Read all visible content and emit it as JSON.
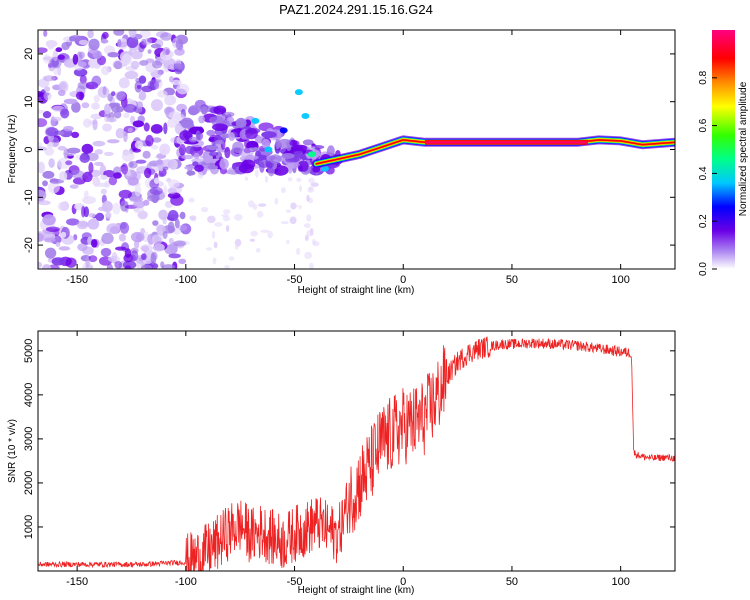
{
  "figure_title": "PAZ1.2024.291.15.16.G24",
  "chart_data": [
    {
      "type": "heatmap",
      "xlabel": "Height of straight line (km)",
      "ylabel": "Frequency (Hz)",
      "xlim": [
        -168,
        125
      ],
      "ylim": [
        -25,
        25
      ],
      "xticks": [
        -150,
        -100,
        -50,
        0,
        50,
        100
      ],
      "yticks": [
        -20,
        -10,
        0,
        10,
        20
      ],
      "colorbar": {
        "label": "Normalized spectral amplitude",
        "range": [
          0.0,
          1.0
        ],
        "ticks": [
          0.0,
          0.2,
          0.4,
          0.6,
          0.8
        ]
      },
      "signal_trace": {
        "x": [
          -40,
          -30,
          -20,
          -10,
          0,
          10,
          20,
          40,
          60,
          80,
          90,
          100,
          110,
          125
        ],
        "frequency": [
          -3,
          -2,
          -1,
          0.5,
          2.0,
          1.5,
          1.5,
          1.5,
          1.5,
          1.5,
          2.0,
          1.8,
          1.0,
          1.5
        ],
        "amplitude": [
          0.3,
          0.45,
          0.5,
          0.6,
          0.7,
          0.85,
          0.9,
          0.95,
          0.95,
          0.85,
          0.7,
          0.6,
          0.45,
          0.3
        ]
      }
    },
    {
      "type": "line",
      "xlabel": "Height of straight line (km)",
      "ylabel": "SNR (10 * v/v)",
      "xlim": [
        -168,
        125
      ],
      "ylim": [
        0,
        5450
      ],
      "xticks": [
        -150,
        -100,
        -50,
        0,
        50,
        100
      ],
      "yticks": [
        1000,
        2000,
        3000,
        4000,
        5000
      ],
      "series": [
        {
          "color": "#ee2222",
          "x": [
            -168,
            -150,
            -120,
            -100,
            -95,
            -90,
            -85,
            -80,
            -75,
            -70,
            -65,
            -60,
            -55,
            -50,
            -45,
            -40,
            -35,
            -30,
            -25,
            -20,
            -15,
            -10,
            -5,
            0,
            5,
            10,
            15,
            20,
            25,
            30,
            35,
            40,
            45,
            50,
            60,
            70,
            80,
            90,
            100,
            105,
            106,
            107,
            110,
            115,
            120,
            125
          ],
          "y": [
            150,
            150,
            150,
            200,
            300,
            450,
            650,
            900,
            1050,
            800,
            900,
            750,
            650,
            850,
            950,
            1100,
            950,
            800,
            1600,
            2000,
            2400,
            2900,
            3100,
            3300,
            3350,
            3500,
            3900,
            4400,
            4750,
            4950,
            5050,
            5100,
            5150,
            5150,
            5180,
            5150,
            5120,
            5050,
            4980,
            4950,
            2700,
            2650,
            2600,
            2560,
            2580,
            2560
          ]
        }
      ]
    }
  ]
}
